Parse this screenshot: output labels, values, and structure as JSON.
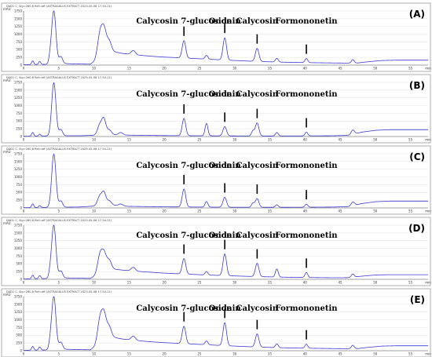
{
  "chart_data": [
    {
      "type": "line",
      "panel_label": "(A)",
      "header_text": "DAD1 C, Sig=260,8 Ref=off (ASTRAGALUS EXTRACT 2023-05-08 17-54-21)",
      "units": "mAU",
      "y_ticks": [
        "1750",
        "1500",
        "1250",
        "1000",
        "750",
        "500",
        "250",
        "0"
      ],
      "x_ticks": [
        "0",
        "5",
        "10",
        "15",
        "20",
        "25",
        "30",
        "35",
        "40",
        "45",
        "50",
        "55",
        "min"
      ],
      "xlim": [
        0,
        57.5
      ],
      "ylim": [
        0,
        1750
      ],
      "baseline_x": [
        0,
        4.3,
        5,
        7,
        9.5,
        10,
        11,
        12,
        14,
        16,
        18,
        20,
        22,
        23,
        24,
        26,
        28,
        30,
        32,
        34,
        36,
        38,
        40,
        42,
        44,
        46,
        47.5,
        49,
        51,
        53,
        55,
        57.5
      ],
      "baseline_y": [
        12,
        30,
        55,
        40,
        30,
        120,
        450,
        470,
        380,
        330,
        290,
        260,
        240,
        230,
        215,
        195,
        170,
        150,
        130,
        115,
        100,
        90,
        82,
        76,
        70,
        66,
        70,
        110,
        150,
        160,
        160,
        160
      ],
      "peaks": [
        {
          "x": 1.3,
          "y": 120,
          "w": 0.15
        },
        {
          "x": 2.3,
          "y": 100,
          "w": 0.15
        },
        {
          "x": 3.8,
          "y": 180,
          "w": 0.2
        },
        {
          "x": 4.3,
          "y": 1720,
          "w": 0.3
        },
        {
          "x": 5.3,
          "y": 220,
          "w": 0.25
        },
        {
          "x": 10.8,
          "y": 520,
          "w": 0.3
        },
        {
          "x": 11.4,
          "y": 780,
          "w": 0.35
        },
        {
          "x": 12.2,
          "y": 300,
          "w": 0.3
        },
        {
          "x": 15.6,
          "y": 130,
          "w": 0.3
        },
        {
          "x": 22.8,
          "y": 560,
          "w": 0.25
        },
        {
          "x": 26.0,
          "y": 120,
          "w": 0.2
        },
        {
          "x": 28.6,
          "y": 720,
          "w": 0.25
        },
        {
          "x": 33.2,
          "y": 420,
          "w": 0.25
        },
        {
          "x": 36.0,
          "y": 120,
          "w": 0.2
        },
        {
          "x": 40.2,
          "y": 130,
          "w": 0.2
        },
        {
          "x": 46.8,
          "y": 110,
          "w": 0.2
        }
      ],
      "annotations": [
        {
          "text": "Calycosin 7-glucoside",
          "x": 22.8
        },
        {
          "text": "Ononin",
          "x": 28.6
        },
        {
          "text": "Calycosin",
          "x": 33.2
        },
        {
          "text": "Formononetin",
          "x": 40.2
        }
      ]
    },
    {
      "type": "line",
      "panel_label": "(B)",
      "header_text": "DAD1 C, Sig=260,8 Ref=off (ASTRAGALUS EXTRACT 2023-05-08 17-54-21)",
      "units": "mAU",
      "y_ticks": [
        "1750",
        "1500",
        "1250",
        "1000",
        "750",
        "500",
        "250",
        "0"
      ],
      "x_ticks": [
        "0",
        "5",
        "10",
        "15",
        "20",
        "25",
        "30",
        "35",
        "40",
        "45",
        "50",
        "55",
        "min"
      ],
      "xlim": [
        0,
        57.5
      ],
      "ylim": [
        0,
        1750
      ],
      "baseline_x": [
        0,
        4,
        6,
        8,
        10,
        12,
        15,
        20,
        25,
        30,
        35,
        40,
        44,
        46.5,
        48,
        50,
        52,
        55,
        57.5
      ],
      "baseline_y": [
        8,
        20,
        25,
        25,
        40,
        60,
        45,
        30,
        25,
        20,
        18,
        20,
        25,
        40,
        140,
        200,
        220,
        220,
        220
      ],
      "peaks": [
        {
          "x": 1.3,
          "y": 120,
          "w": 0.15
        },
        {
          "x": 2.3,
          "y": 60,
          "w": 0.15
        },
        {
          "x": 4.3,
          "y": 1720,
          "w": 0.3
        },
        {
          "x": 5.3,
          "y": 200,
          "w": 0.25
        },
        {
          "x": 10.8,
          "y": 300,
          "w": 0.3
        },
        {
          "x": 11.4,
          "y": 520,
          "w": 0.3
        },
        {
          "x": 12.2,
          "y": 150,
          "w": 0.3
        },
        {
          "x": 13.8,
          "y": 80,
          "w": 0.3
        },
        {
          "x": 22.8,
          "y": 560,
          "w": 0.25
        },
        {
          "x": 26.0,
          "y": 400,
          "w": 0.2
        },
        {
          "x": 28.6,
          "y": 300,
          "w": 0.25
        },
        {
          "x": 32.6,
          "y": 160,
          "w": 0.2
        },
        {
          "x": 33.2,
          "y": 420,
          "w": 0.25
        },
        {
          "x": 36.0,
          "y": 110,
          "w": 0.2
        },
        {
          "x": 40.2,
          "y": 120,
          "w": 0.2
        },
        {
          "x": 46.8,
          "y": 150,
          "w": 0.25
        }
      ],
      "annotations": [
        {
          "text": "Calycosin 7-glucoside",
          "x": 22.8
        },
        {
          "text": "Ononin",
          "x": 28.6
        },
        {
          "text": "Calycosin",
          "x": 33.2
        },
        {
          "text": "Formononetin",
          "x": 40.2
        }
      ]
    },
    {
      "type": "line",
      "panel_label": "(C)",
      "header_text": "DAD1 C, Sig=260,8 Ref=off (ASTRAGALUS EXTRACT 2023-05-08 17-54-21)",
      "units": "mAU",
      "y_ticks": [
        "1750",
        "1500",
        "1250",
        "1000",
        "750",
        "500",
        "250",
        "0"
      ],
      "x_ticks": [
        "0",
        "5",
        "10",
        "15",
        "20",
        "25",
        "30",
        "35",
        "40",
        "45",
        "50",
        "55",
        "min"
      ],
      "xlim": [
        0,
        57.5
      ],
      "ylim": [
        0,
        1750
      ],
      "baseline_x": [
        0,
        4,
        6,
        8,
        10,
        11.5,
        13,
        15,
        20,
        25,
        30,
        35,
        40,
        44,
        46.5,
        48,
        50,
        52,
        55,
        57.5
      ],
      "baseline_y": [
        8,
        20,
        25,
        30,
        60,
        130,
        80,
        50,
        35,
        28,
        22,
        20,
        22,
        28,
        45,
        140,
        200,
        220,
        220,
        220
      ],
      "peaks": [
        {
          "x": 1.3,
          "y": 120,
          "w": 0.15
        },
        {
          "x": 2.3,
          "y": 60,
          "w": 0.15
        },
        {
          "x": 4.3,
          "y": 1720,
          "w": 0.3
        },
        {
          "x": 5.3,
          "y": 200,
          "w": 0.25
        },
        {
          "x": 10.8,
          "y": 260,
          "w": 0.3
        },
        {
          "x": 11.4,
          "y": 380,
          "w": 0.3
        },
        {
          "x": 12.2,
          "y": 120,
          "w": 0.3
        },
        {
          "x": 13.8,
          "y": 60,
          "w": 0.3
        },
        {
          "x": 22.8,
          "y": 580,
          "w": 0.25
        },
        {
          "x": 26.0,
          "y": 180,
          "w": 0.2
        },
        {
          "x": 28.6,
          "y": 320,
          "w": 0.25
        },
        {
          "x": 32.6,
          "y": 130,
          "w": 0.2
        },
        {
          "x": 33.2,
          "y": 280,
          "w": 0.25
        },
        {
          "x": 36.0,
          "y": 80,
          "w": 0.2
        },
        {
          "x": 40.2,
          "y": 100,
          "w": 0.2
        },
        {
          "x": 46.8,
          "y": 130,
          "w": 0.25
        }
      ],
      "annotations": [
        {
          "text": "Calycosin 7-glucoside",
          "x": 22.8
        },
        {
          "text": "Ononin",
          "x": 28.6
        },
        {
          "text": "Calycosin",
          "x": 33.2
        },
        {
          "text": "Formononetin",
          "x": 40.2
        }
      ]
    },
    {
      "type": "line",
      "panel_label": "(D)",
      "header_text": "DAD1 C, Sig=260,8 Ref=off (ASTRAGALUS EXTRACT 2023-05-08 17-54-21)",
      "units": "mAU",
      "y_ticks": [
        "1750",
        "1500",
        "1250",
        "1000",
        "750",
        "500",
        "250",
        "0"
      ],
      "x_ticks": [
        "0",
        "5",
        "10",
        "15",
        "20",
        "25",
        "30",
        "35",
        "40",
        "45",
        "50",
        "55",
        "min"
      ],
      "xlim": [
        0,
        57.5
      ],
      "ylim": [
        0,
        1750
      ],
      "baseline_x": [
        0,
        4.3,
        5,
        7,
        9.5,
        10,
        11,
        12,
        14,
        16,
        18,
        20,
        22,
        24,
        26,
        28,
        30,
        32,
        34,
        36,
        38,
        40,
        42,
        44,
        46,
        48,
        50,
        52,
        55,
        57.5
      ],
      "baseline_y": [
        12,
        30,
        50,
        40,
        30,
        100,
        330,
        350,
        300,
        260,
        230,
        200,
        180,
        160,
        140,
        125,
        110,
        95,
        85,
        75,
        65,
        60,
        55,
        50,
        52,
        100,
        140,
        150,
        150,
        150
      ],
      "peaks": [
        {
          "x": 1.3,
          "y": 120,
          "w": 0.15
        },
        {
          "x": 2.3,
          "y": 100,
          "w": 0.15
        },
        {
          "x": 3.8,
          "y": 160,
          "w": 0.2
        },
        {
          "x": 4.3,
          "y": 1720,
          "w": 0.3
        },
        {
          "x": 5.3,
          "y": 220,
          "w": 0.25
        },
        {
          "x": 10.8,
          "y": 420,
          "w": 0.3
        },
        {
          "x": 11.4,
          "y": 560,
          "w": 0.35
        },
        {
          "x": 12.2,
          "y": 260,
          "w": 0.3
        },
        {
          "x": 15.6,
          "y": 120,
          "w": 0.3
        },
        {
          "x": 22.8,
          "y": 500,
          "w": 0.25
        },
        {
          "x": 26.0,
          "y": 110,
          "w": 0.2
        },
        {
          "x": 28.6,
          "y": 700,
          "w": 0.25
        },
        {
          "x": 33.2,
          "y": 430,
          "w": 0.25
        },
        {
          "x": 36.0,
          "y": 260,
          "w": 0.2
        },
        {
          "x": 40.2,
          "y": 160,
          "w": 0.2
        },
        {
          "x": 46.8,
          "y": 100,
          "w": 0.2
        }
      ],
      "annotations": [
        {
          "text": "Calycosin 7-glucoside",
          "x": 22.8
        },
        {
          "text": "Ononin",
          "x": 28.6
        },
        {
          "text": "Calycosin",
          "x": 33.2
        },
        {
          "text": "Formononetin",
          "x": 40.2
        }
      ]
    },
    {
      "type": "line",
      "panel_label": "(E)",
      "header_text": "DAD1 C, Sig=260,8 Ref=off (ASTRAGALUS EXTRACT 2023-05-08 17-54-21)",
      "units": "mAU",
      "y_ticks": [
        "1750",
        "1500",
        "1250",
        "1000",
        "750",
        "500",
        "250",
        "0"
      ],
      "x_ticks": [
        "0",
        "5",
        "10",
        "15",
        "20",
        "25",
        "30",
        "35",
        "40",
        "45",
        "50",
        "55",
        "min"
      ],
      "xlim": [
        0,
        57.5
      ],
      "ylim": [
        0,
        1750
      ],
      "baseline_x": [
        0,
        4.3,
        5,
        7,
        9.5,
        10,
        11,
        12,
        14,
        16,
        18,
        20,
        22,
        23,
        24,
        26,
        28,
        30,
        32,
        34,
        36,
        38,
        40,
        42,
        44,
        46,
        47.5,
        49,
        51,
        53,
        55,
        57.5
      ],
      "baseline_y": [
        12,
        30,
        55,
        40,
        30,
        120,
        450,
        470,
        380,
        330,
        290,
        260,
        240,
        230,
        215,
        195,
        170,
        150,
        130,
        115,
        100,
        90,
        82,
        76,
        70,
        66,
        70,
        110,
        150,
        160,
        160,
        160
      ],
      "peaks": [
        {
          "x": 1.3,
          "y": 120,
          "w": 0.15
        },
        {
          "x": 2.3,
          "y": 100,
          "w": 0.15
        },
        {
          "x": 3.8,
          "y": 180,
          "w": 0.2
        },
        {
          "x": 4.3,
          "y": 1720,
          "w": 0.3
        },
        {
          "x": 5.3,
          "y": 220,
          "w": 0.25
        },
        {
          "x": 10.8,
          "y": 520,
          "w": 0.3
        },
        {
          "x": 11.4,
          "y": 800,
          "w": 0.35
        },
        {
          "x": 12.2,
          "y": 300,
          "w": 0.3
        },
        {
          "x": 15.6,
          "y": 130,
          "w": 0.3
        },
        {
          "x": 22.8,
          "y": 560,
          "w": 0.25
        },
        {
          "x": 26.0,
          "y": 120,
          "w": 0.2
        },
        {
          "x": 28.6,
          "y": 740,
          "w": 0.25
        },
        {
          "x": 33.2,
          "y": 420,
          "w": 0.25
        },
        {
          "x": 36.0,
          "y": 120,
          "w": 0.2
        },
        {
          "x": 40.2,
          "y": 130,
          "w": 0.2
        },
        {
          "x": 46.8,
          "y": 110,
          "w": 0.2
        }
      ],
      "annotations": [
        {
          "text": "Calycosin 7-glucoside",
          "x": 22.8
        },
        {
          "text": "Ononin",
          "x": 28.6
        },
        {
          "text": "Calycosin",
          "x": 33.2
        },
        {
          "text": "Formononetin",
          "x": 40.2
        }
      ]
    }
  ],
  "colors": {
    "trace": "#3b3bd6",
    "frame": "#9a9a9a",
    "text": "#000000"
  }
}
